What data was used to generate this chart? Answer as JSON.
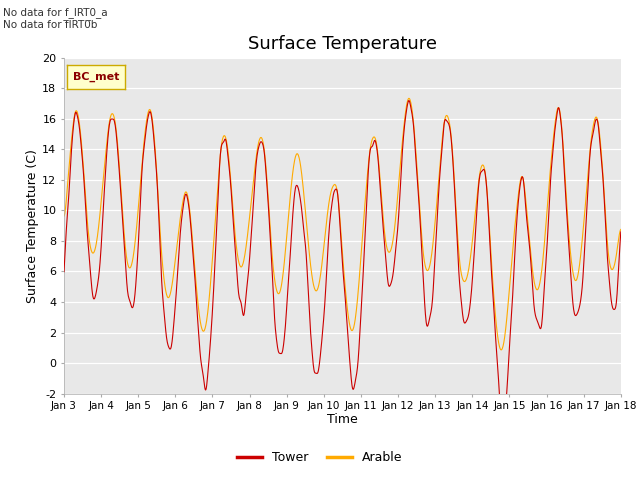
{
  "title": "Surface Temperature",
  "xlabel": "Time",
  "ylabel": "Surface Temperature (C)",
  "ylim": [
    -2,
    20
  ],
  "yticks": [
    -2,
    0,
    2,
    4,
    6,
    8,
    10,
    12,
    14,
    16,
    18,
    20
  ],
  "xtick_labels": [
    "Jan 3",
    "Jan 4",
    "Jan 5",
    "Jan 6",
    "Jan 7",
    "Jan 8",
    "Jan 9",
    "Jan 10",
    "Jan 11",
    "Jan 12",
    "Jan 13",
    "Jan 14",
    "Jan 15",
    "Jan 16",
    "Jan 17",
    "Jan 18"
  ],
  "no_data_text_1": "No data for f_IRT0_a",
  "no_data_text_2": "No data for f̅IRT0̅b",
  "bc_met_label": "BC_met",
  "tower_color": "#cc0000",
  "arable_color": "#ffaa00",
  "background_color": "#e8e8e8",
  "plot_bg_color": "#e8e8e8",
  "legend_tower": "Tower",
  "legend_arable": "Arable",
  "title_fontsize": 13,
  "axis_label_fontsize": 9,
  "tick_fontsize": 8
}
